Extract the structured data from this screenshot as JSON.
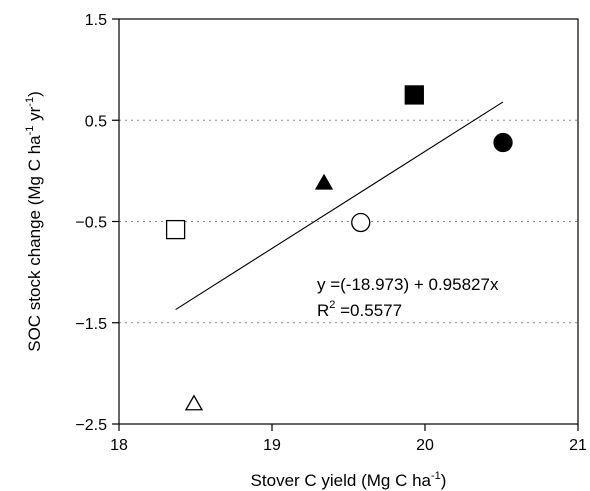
{
  "chart_data": {
    "type": "scatter",
    "xlabel": {
      "main": "Stover C yield (Mg C ha",
      "sup": "-1",
      "tail": ")"
    },
    "ylabel": {
      "p1": "SOC stock change (Mg C ha",
      "sup1": "-1",
      "p2": " yr",
      "sup2": "-1",
      "tail": ")"
    },
    "xlim": [
      18,
      21
    ],
    "ylim": [
      -2.5,
      1.5
    ],
    "xticks": [
      18,
      19,
      20,
      21
    ],
    "xtick_labels": [
      "18",
      "19",
      "20",
      "21"
    ],
    "yticks": [
      -2.5,
      -1.5,
      -0.5,
      0.5,
      1.5
    ],
    "ytick_labels": [
      "-2.5",
      "-1.5",
      "-0.5",
      "0.5",
      "1.5"
    ],
    "grid": "horizontal dotted at y = -1.5, -0.5, 0.5",
    "points": [
      {
        "x": 19.93,
        "y": 0.75,
        "marker": "square",
        "filled": true
      },
      {
        "x": 20.51,
        "y": 0.28,
        "marker": "circle",
        "filled": true
      },
      {
        "x": 19.34,
        "y": -0.12,
        "marker": "triangle",
        "filled": true
      },
      {
        "x": 19.58,
        "y": -0.51,
        "marker": "circle",
        "filled": false
      },
      {
        "x": 18.37,
        "y": -0.58,
        "marker": "square",
        "filled": false
      },
      {
        "x": 18.49,
        "y": -2.3,
        "marker": "triangle",
        "filled": false
      }
    ],
    "regression": {
      "intercept": -18.973,
      "slope": 0.95827,
      "x_range": [
        18.37,
        20.51
      ]
    },
    "annotation": {
      "equation": "y =(-18.973) + 0.95827x",
      "r2_prefix": "R",
      "r2_sup": "2",
      "r2_value": " =0.5577"
    }
  }
}
